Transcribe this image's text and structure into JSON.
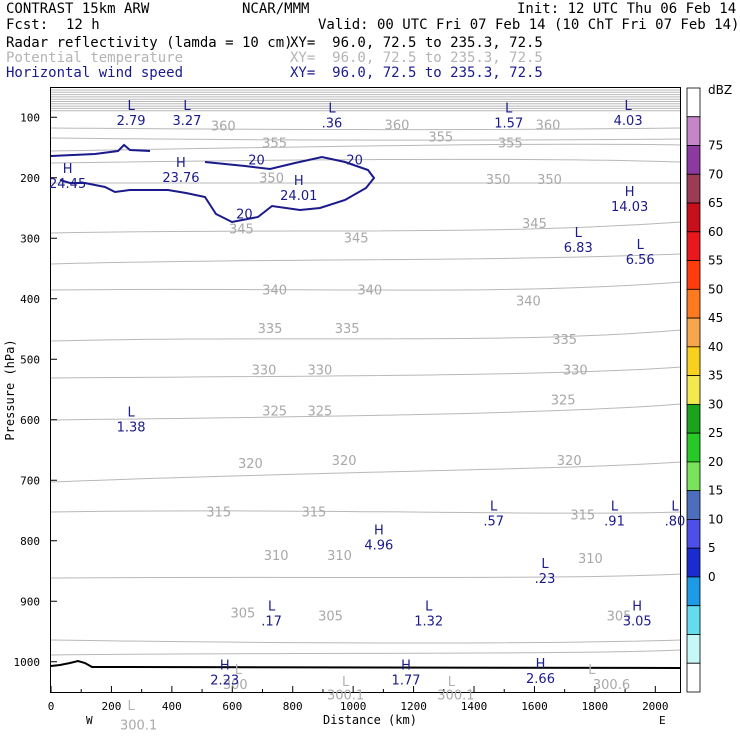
{
  "header": {
    "title_left": "CONTRAST 15km ARW",
    "title_mid": "NCAR/MMM",
    "init": "Init: 12 UTC Thu 06 Feb 14",
    "fcst_label": "Fcst:",
    "fcst_value": "12 h",
    "valid": "Valid: 00 UTC Fri 07 Feb 14 (10 ChT Fri 07 Feb 14)",
    "fields": [
      {
        "name": "Radar reflectivity (lamda = 10 cm)",
        "xy": "XY=  96.0, 72.5 to 235.3, 72.5",
        "color": "#000000"
      },
      {
        "name": "Potential temperature",
        "xy": "XY=  96.0, 72.5 to 235.3, 72.5",
        "color": "#b4b4b4"
      },
      {
        "name": "Horizontal wind speed",
        "xy": "XY=  96.0, 72.5 to 235.3, 72.5",
        "color": "#1a1a8c"
      }
    ]
  },
  "chart_data": {
    "type": "contour",
    "xlabel": "Distance (km)",
    "ylabel": "Pressure (hPa)",
    "xlim": [
      0,
      2085
    ],
    "ylim": [
      1050,
      50
    ],
    "xticks": [
      0,
      200,
      400,
      600,
      800,
      1000,
      1200,
      1400,
      1600,
      1800,
      2000
    ],
    "yticks": [
      100,
      200,
      300,
      400,
      500,
      600,
      700,
      800,
      900,
      1000
    ],
    "x_end_labels": {
      "left": "W",
      "right": "E"
    },
    "theta_labels": [
      {
        "v": "360",
        "x": 570,
        "p": 122
      },
      {
        "v": "360",
        "x": 1145,
        "p": 120
      },
      {
        "v": "360",
        "x": 1645,
        "p": 120
      },
      {
        "v": "355",
        "x": 740,
        "p": 150
      },
      {
        "v": "355",
        "x": 1290,
        "p": 140
      },
      {
        "v": "355",
        "x": 1520,
        "p": 150
      },
      {
        "v": "350",
        "x": 730,
        "p": 208
      },
      {
        "v": "350",
        "x": 1480,
        "p": 210
      },
      {
        "v": "350",
        "x": 1650,
        "p": 210
      },
      {
        "v": "345",
        "x": 630,
        "p": 292
      },
      {
        "v": "345",
        "x": 1010,
        "p": 307
      },
      {
        "v": "345",
        "x": 1600,
        "p": 283
      },
      {
        "v": "340",
        "x": 740,
        "p": 393
      },
      {
        "v": "340",
        "x": 1055,
        "p": 393
      },
      {
        "v": "340",
        "x": 1580,
        "p": 411
      },
      {
        "v": "335",
        "x": 725,
        "p": 457
      },
      {
        "v": "335",
        "x": 980,
        "p": 457
      },
      {
        "v": "335",
        "x": 1700,
        "p": 475
      },
      {
        "v": "330",
        "x": 705,
        "p": 525
      },
      {
        "v": "330",
        "x": 890,
        "p": 525
      },
      {
        "v": "330",
        "x": 1735,
        "p": 525
      },
      {
        "v": "325",
        "x": 740,
        "p": 593
      },
      {
        "v": "325",
        "x": 890,
        "p": 593
      },
      {
        "v": "325",
        "x": 1695,
        "p": 575
      },
      {
        "v": "320",
        "x": 660,
        "p": 680
      },
      {
        "v": "320",
        "x": 970,
        "p": 675
      },
      {
        "v": "320",
        "x": 1715,
        "p": 675
      },
      {
        "v": "315",
        "x": 555,
        "p": 760
      },
      {
        "v": "315",
        "x": 870,
        "p": 760
      },
      {
        "v": "315",
        "x": 1760,
        "p": 765
      },
      {
        "v": "310",
        "x": 745,
        "p": 832
      },
      {
        "v": "310",
        "x": 955,
        "p": 832
      },
      {
        "v": "310",
        "x": 1785,
        "p": 837
      },
      {
        "v": "305",
        "x": 635,
        "p": 927
      },
      {
        "v": "305",
        "x": 925,
        "p": 932
      },
      {
        "v": "305",
        "x": 1880,
        "p": 932
      },
      {
        "v": "300",
        "x": 610,
        "p": 1045
      },
      {
        "v": "300.1",
        "x": 290,
        "p": 1112
      },
      {
        "v": "300.1",
        "x": 975,
        "p": 1062
      },
      {
        "v": "300.1",
        "x": 1340,
        "p": 1062
      },
      {
        "v": "300.6",
        "x": 1855,
        "p": 1045
      }
    ],
    "theta_extrema": [
      {
        "t": "L",
        "x": 265,
        "p": 1080
      },
      {
        "t": "L",
        "x": 620,
        "p": 1020
      },
      {
        "t": "L",
        "x": 975,
        "p": 1040
      },
      {
        "t": "L",
        "x": 1325,
        "p": 1040
      },
      {
        "t": "L",
        "x": 1790,
        "p": 1020
      }
    ],
    "wind_labels": [
      {
        "v": "20",
        "x": 680,
        "p": 178
      },
      {
        "v": "20",
        "x": 1005,
        "p": 178
      },
      {
        "v": "20",
        "x": 640,
        "p": 267
      }
    ],
    "wind_extrema": [
      {
        "t": "L",
        "v": "2.79",
        "x": 265,
        "p": 88
      },
      {
        "t": "L",
        "v": "3.27",
        "x": 450,
        "p": 88
      },
      {
        "t": "L",
        "v": ".36",
        "x": 930,
        "p": 92
      },
      {
        "t": "L",
        "v": "1.57",
        "x": 1515,
        "p": 92
      },
      {
        "t": "L",
        "v": "4.03",
        "x": 1910,
        "p": 88
      },
      {
        "t": "H",
        "v": "24.45",
        "x": 55,
        "p": 192
      },
      {
        "t": "H",
        "v": "23.76",
        "x": 430,
        "p": 182
      },
      {
        "t": "H",
        "v": "24.01",
        "x": 820,
        "p": 212
      },
      {
        "t": "H",
        "v": "14.03",
        "x": 1915,
        "p": 230
      },
      {
        "t": "L",
        "v": "6.83",
        "x": 1745,
        "p": 298
      },
      {
        "t": "L",
        "v": "6.56",
        "x": 1950,
        "p": 318
      },
      {
        "t": "L",
        "v": "1.38",
        "x": 265,
        "p": 595
      },
      {
        "t": "H",
        "v": "4.96",
        "x": 1085,
        "p": 790
      },
      {
        "t": "L",
        "v": ".57",
        "x": 1465,
        "p": 750
      },
      {
        "t": "L",
        "v": ".91",
        "x": 1865,
        "p": 750
      },
      {
        "t": "L",
        "v": ".80",
        "x": 2065,
        "p": 750
      },
      {
        "t": "L",
        "v": ".23",
        "x": 1635,
        "p": 845
      },
      {
        "t": "L",
        "v": ".17",
        "x": 730,
        "p": 915
      },
      {
        "t": "L",
        "v": "1.32",
        "x": 1250,
        "p": 915
      },
      {
        "t": "H",
        "v": "3.05",
        "x": 1940,
        "p": 915
      },
      {
        "t": "H",
        "v": "2.23",
        "x": 575,
        "p": 1013
      },
      {
        "t": "H",
        "v": "1.77",
        "x": 1175,
        "p": 1013
      },
      {
        "t": "H",
        "v": "2.66",
        "x": 1620,
        "p": 1010
      }
    ]
  },
  "colorbar": {
    "unit": "dBZ",
    "levels": [
      "75",
      "70",
      "65",
      "60",
      "55",
      "50",
      "45",
      "40",
      "35",
      "30",
      "25",
      "20",
      "15",
      "10",
      "5",
      "0"
    ],
    "colors": [
      "#ffffff",
      "#c486c8",
      "#8b3aa0",
      "#9b3b54",
      "#c8101c",
      "#e8181c",
      "#ff3c0c",
      "#ff7a1e",
      "#f7a64d",
      "#f7d020",
      "#f4e850",
      "#1ba31b",
      "#26c926",
      "#79e35b",
      "#4c6ebc",
      "#4e4ee8",
      "#1a2ccd",
      "#1e9be6",
      "#64dcee",
      "#c6f8f8",
      "#ffffff"
    ]
  }
}
